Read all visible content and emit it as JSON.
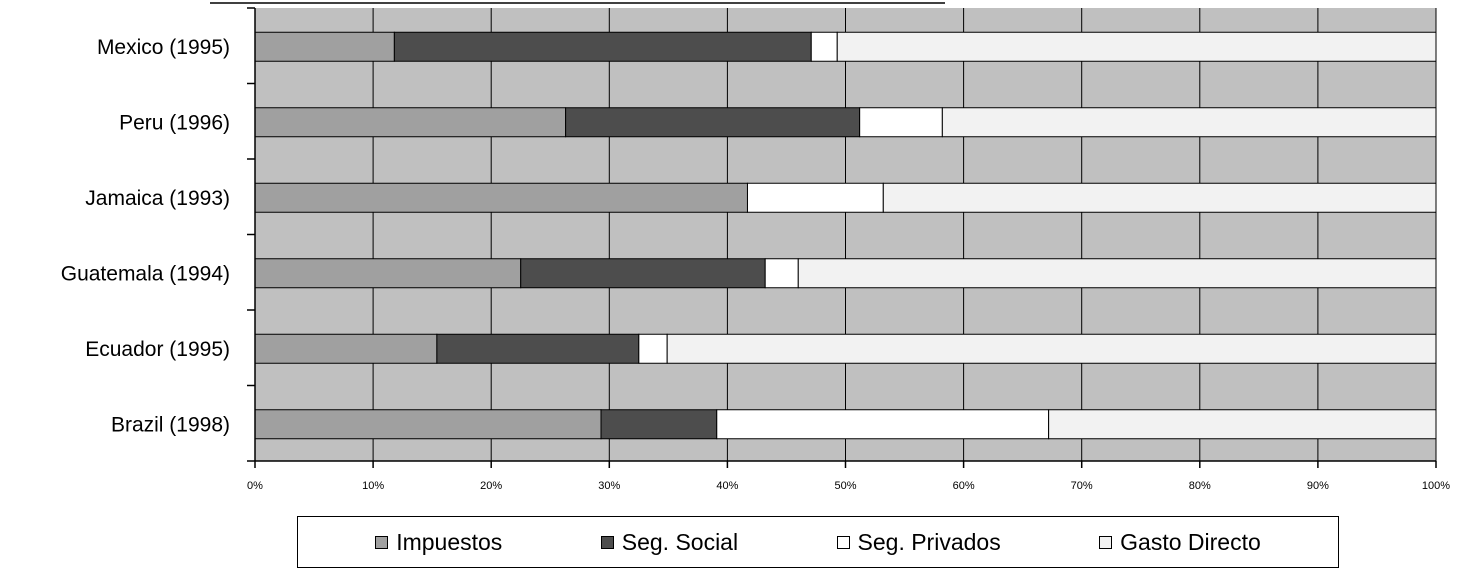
{
  "chart_data": {
    "type": "bar",
    "orientation": "horizontal",
    "stacked": "percent",
    "categories": [
      "Mexico (1995)",
      "Peru (1996)",
      "Jamaica (1993)",
      "Guatemala (1994)",
      "Ecuador  (1995)",
      "Brazil (1998)"
    ],
    "series": [
      {
        "name": "Impuestos",
        "color": "#a0a0a0",
        "values": [
          11.8,
          26.3,
          41.7,
          22.5,
          15.4,
          29.3
        ]
      },
      {
        "name": "Seg. Social",
        "color": "#4d4d4d",
        "values": [
          35.3,
          24.9,
          0.0,
          20.7,
          17.1,
          9.8
        ]
      },
      {
        "name": "Seg. Privados",
        "color": "#ffffff",
        "values": [
          2.2,
          7.0,
          11.5,
          2.8,
          2.4,
          28.1
        ]
      },
      {
        "name": "Gasto Directo",
        "color": "#f2f2f2",
        "values": [
          50.7,
          41.8,
          46.8,
          54.0,
          65.1,
          32.8
        ]
      }
    ],
    "x_ticks": [
      "0%",
      "10%",
      "20%",
      "30%",
      "40%",
      "50%",
      "60%",
      "70%",
      "80%",
      "90%",
      "100%"
    ],
    "xlim": [
      0,
      100
    ],
    "grid": true,
    "plot_background": "#c0c0c0",
    "legend_position": "bottom"
  }
}
